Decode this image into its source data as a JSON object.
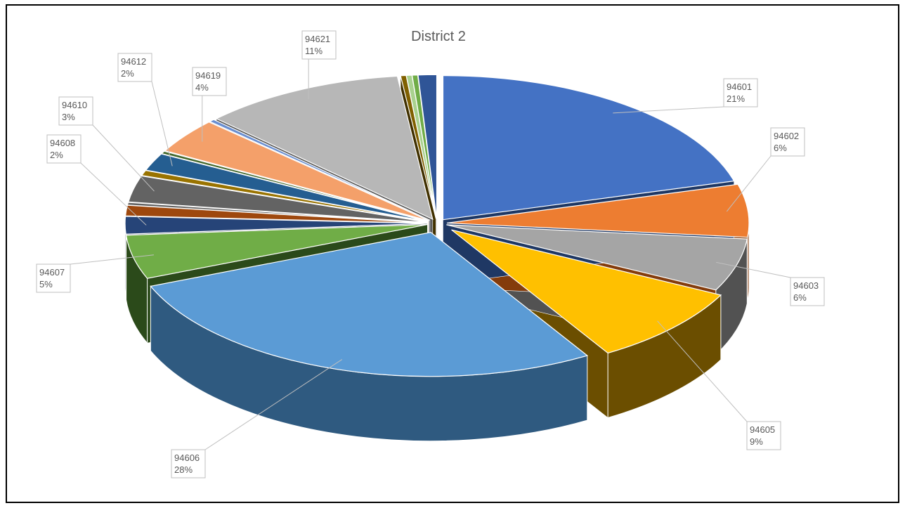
{
  "chart_data": {
    "type": "pie",
    "title": "District 2",
    "slices": [
      {
        "label": "94601",
        "value": 21,
        "percent_label": "21%",
        "color": "#4472C4",
        "side": "#1F3864"
      },
      {
        "label": "94602",
        "value": 6,
        "percent_label": "6%",
        "color": "#ED7D31",
        "side": "#843C0C"
      },
      {
        "label": "94603",
        "value": 6,
        "percent_label": "6%",
        "color": "#A5A5A5",
        "side": "#525252"
      },
      {
        "label": "94605",
        "value": 9,
        "percent_label": "9%",
        "color": "#FFC000",
        "side": "#6B4E00"
      },
      {
        "label": "94606",
        "value": 28,
        "percent_label": "28%",
        "color": "#5B9BD5",
        "side": "#2F5A80"
      },
      {
        "label": "94607",
        "value": 5,
        "percent_label": "5%",
        "color": "#70AD47",
        "side": "#2B4A1A"
      },
      {
        "label": "94608",
        "value": 2,
        "percent_label": "2%",
        "color": "#264478",
        "side": "#132240"
      },
      {
        "label": "",
        "value": 1.2,
        "percent_label": "",
        "color": "#9E480E",
        "side": "#4F2407"
      },
      {
        "label": "",
        "value": 0.3,
        "percent_label": "",
        "color": "#636363",
        "side": "#323232"
      },
      {
        "label": "94610",
        "value": 3,
        "percent_label": "3%",
        "color": "#636363",
        "side": "#323232"
      },
      {
        "label": "",
        "value": 0.6,
        "percent_label": "",
        "color": "#997300",
        "side": "#4D3A00"
      },
      {
        "label": "94612",
        "value": 2,
        "percent_label": "2%",
        "color": "#255E91",
        "side": "#122F48"
      },
      {
        "label": "",
        "value": 0.3,
        "percent_label": "",
        "color": "#43682B",
        "side": "#213415"
      },
      {
        "label": "94619",
        "value": 4,
        "percent_label": "4%",
        "color": "#F4A06A",
        "side": "#7A5035"
      },
      {
        "label": "",
        "value": 0.3,
        "percent_label": "",
        "color": "#698ED0",
        "side": "#344768"
      },
      {
        "label": "94621",
        "value": 11,
        "percent_label": "11%",
        "color": "#B7B7B7",
        "side": "#5C5C5C"
      },
      {
        "label": "",
        "value": 0.3,
        "percent_label": "",
        "color": "#806000",
        "side": "#403000"
      },
      {
        "label": "",
        "value": 0.3,
        "percent_label": "",
        "color": "#A9D18E",
        "side": "#556947"
      },
      {
        "label": "",
        "value": 0.3,
        "percent_label": "",
        "color": "#70AD47",
        "side": "#2B4A1A"
      },
      {
        "label": "",
        "value": 1.0,
        "percent_label": "",
        "color": "#2F5597",
        "side": "#172A4B"
      }
    ]
  }
}
